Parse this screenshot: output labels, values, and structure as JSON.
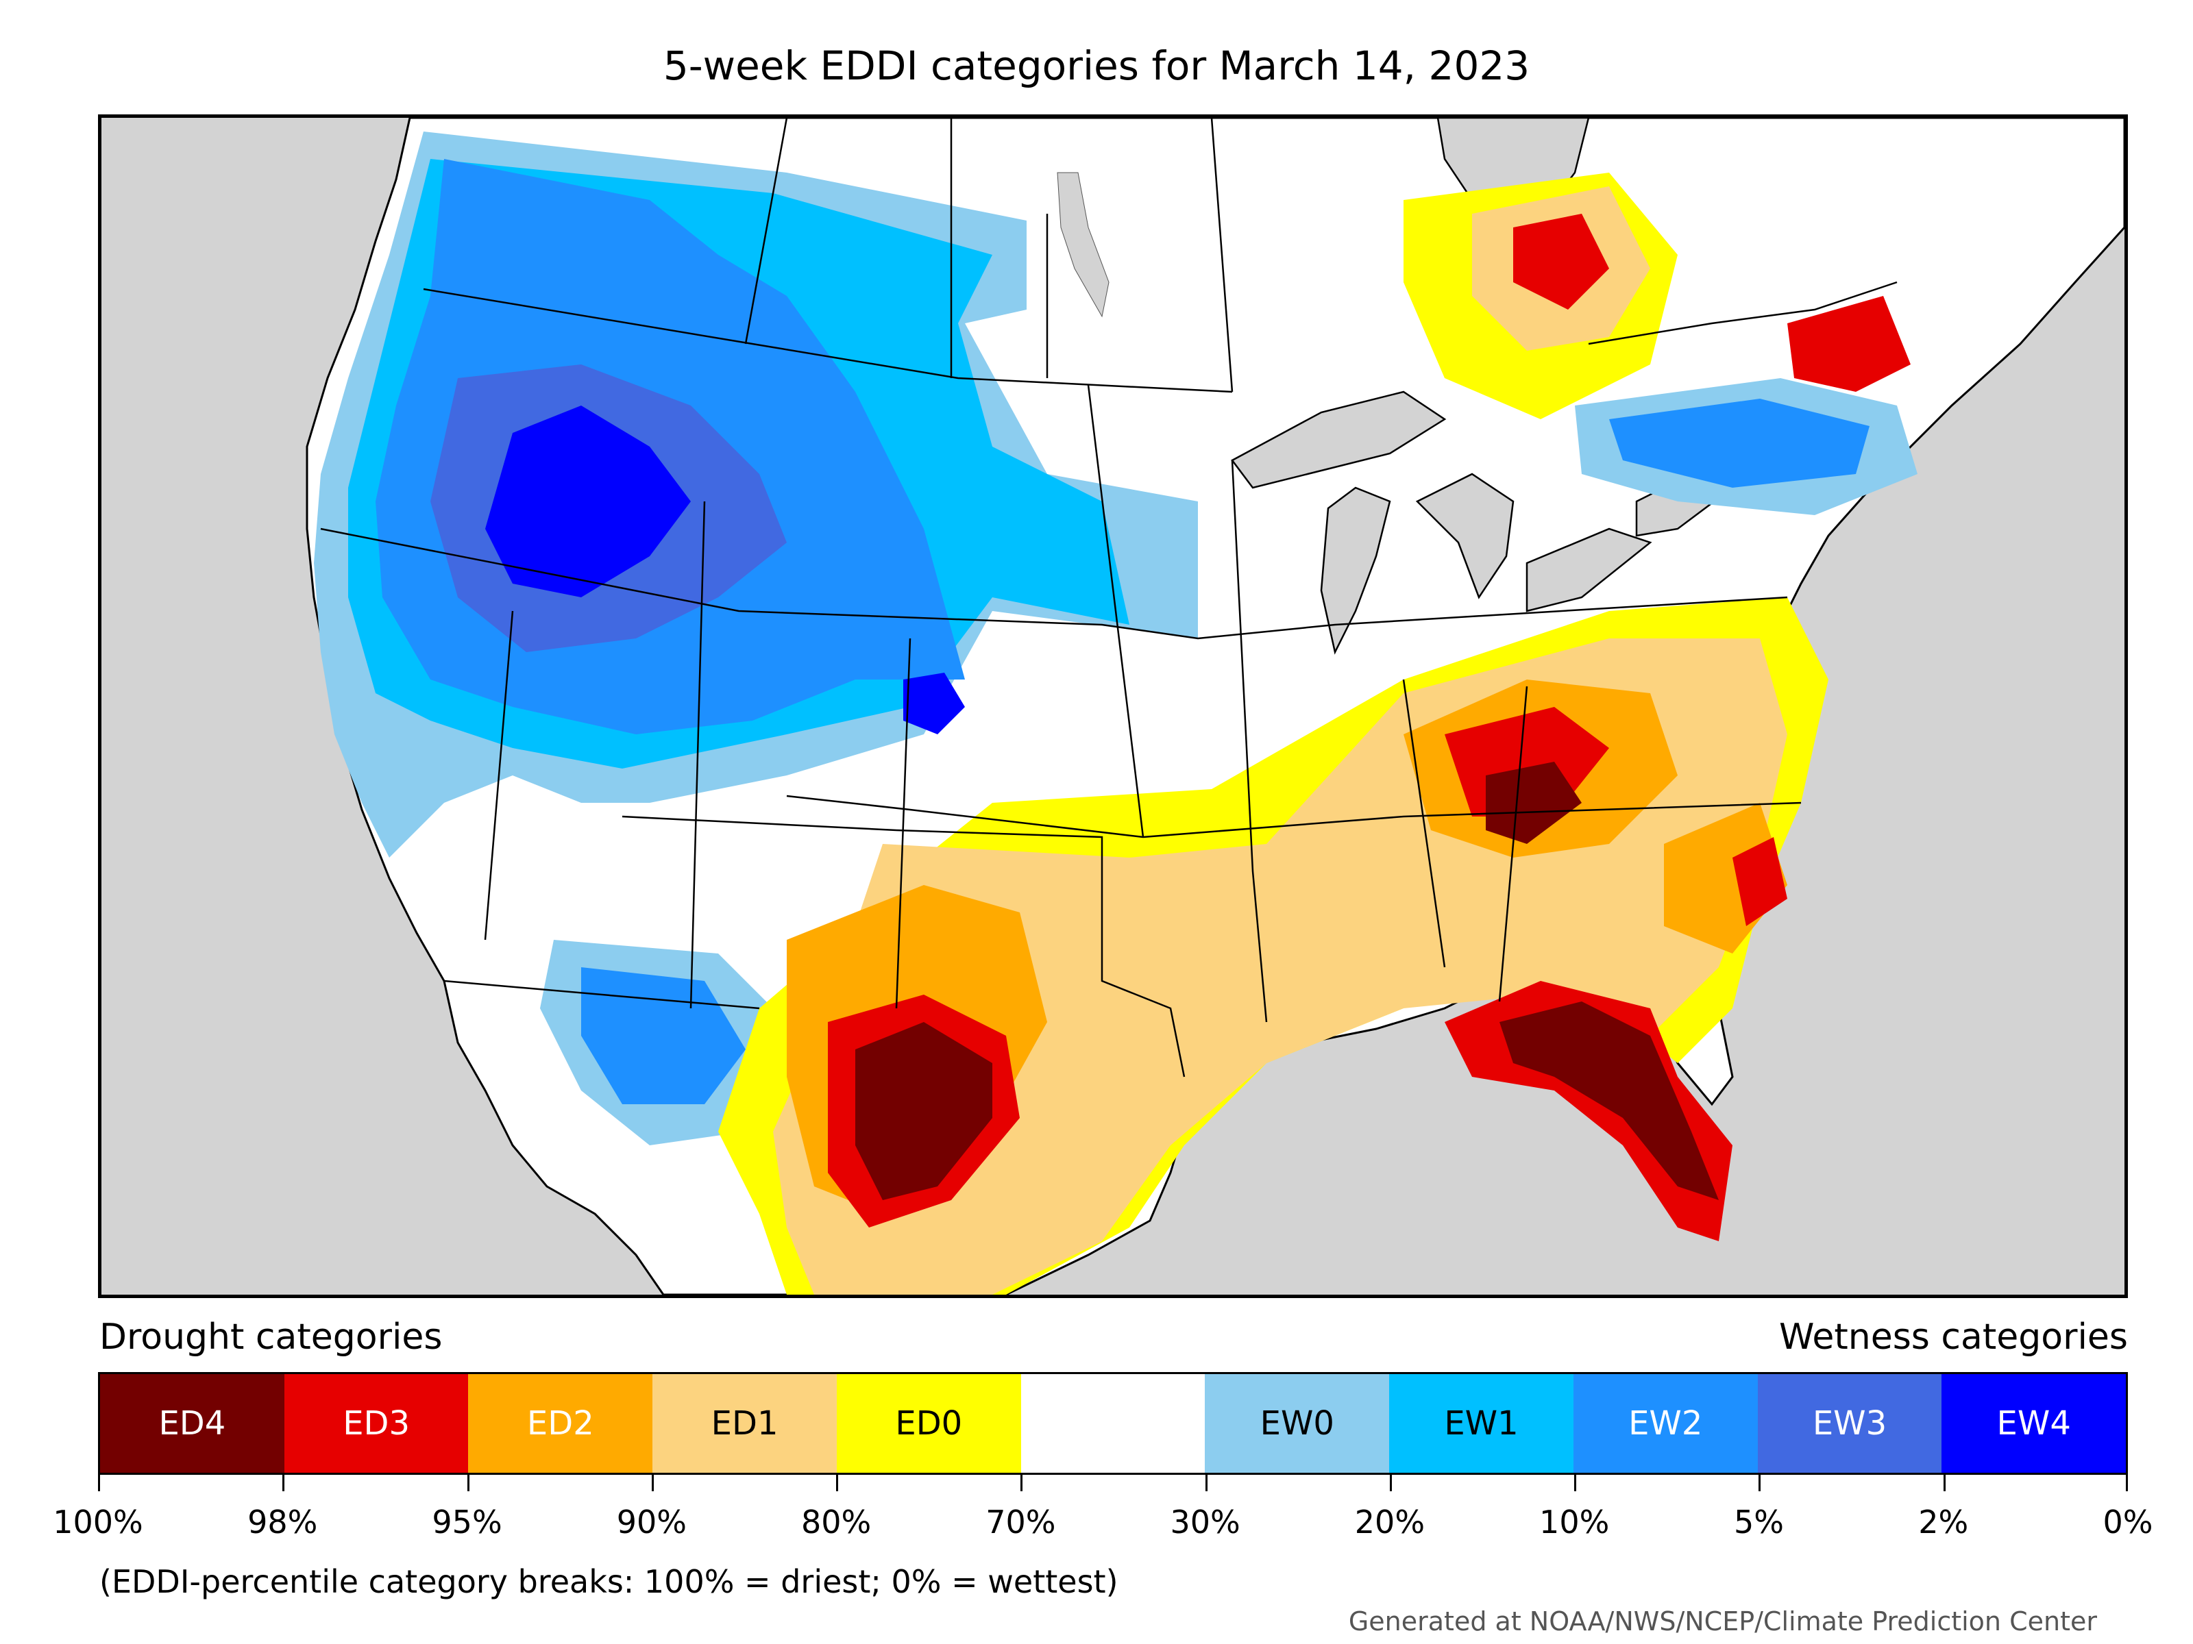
{
  "title": "5-week EDDI categories for March 14, 2023",
  "legend": {
    "left_heading": "Drought categories",
    "right_heading": "Wetness categories",
    "categories": [
      {
        "label": "ED4",
        "color": "#730000",
        "text_color": "#ffffff"
      },
      {
        "label": "ED3",
        "color": "#e60000",
        "text_color": "#ffffff"
      },
      {
        "label": "ED2",
        "color": "#ffaa00",
        "text_color": "#ffffff"
      },
      {
        "label": "ED1",
        "color": "#fcd37f",
        "text_color": "#000000"
      },
      {
        "label": "ED0",
        "color": "#ffff00",
        "text_color": "#000000"
      },
      {
        "label": "",
        "color": "#ffffff",
        "text_color": "#000000"
      },
      {
        "label": "EW0",
        "color": "#8ccdef",
        "text_color": "#000000"
      },
      {
        "label": "EW1",
        "color": "#00c0ff",
        "text_color": "#000000"
      },
      {
        "label": "EW2",
        "color": "#1e90ff",
        "text_color": "#ffffff"
      },
      {
        "label": "EW3",
        "color": "#4169e1",
        "text_color": "#ffffff"
      },
      {
        "label": "EW4",
        "color": "#0000ff",
        "text_color": "#ffffff"
      }
    ],
    "tick_labels": [
      "100%",
      "98%",
      "95%",
      "90%",
      "80%",
      "70%",
      "30%",
      "20%",
      "10%",
      "5%",
      "2%",
      "0%"
    ]
  },
  "note": "(EDDI-percentile category breaks: 100% = driest; 0% = wettest)",
  "credit": "Generated at NOAA/NWS/NCEP/Climate Prediction Center",
  "map_colors": {
    "background": "#d3d3d3",
    "land": "#ffffff"
  }
}
